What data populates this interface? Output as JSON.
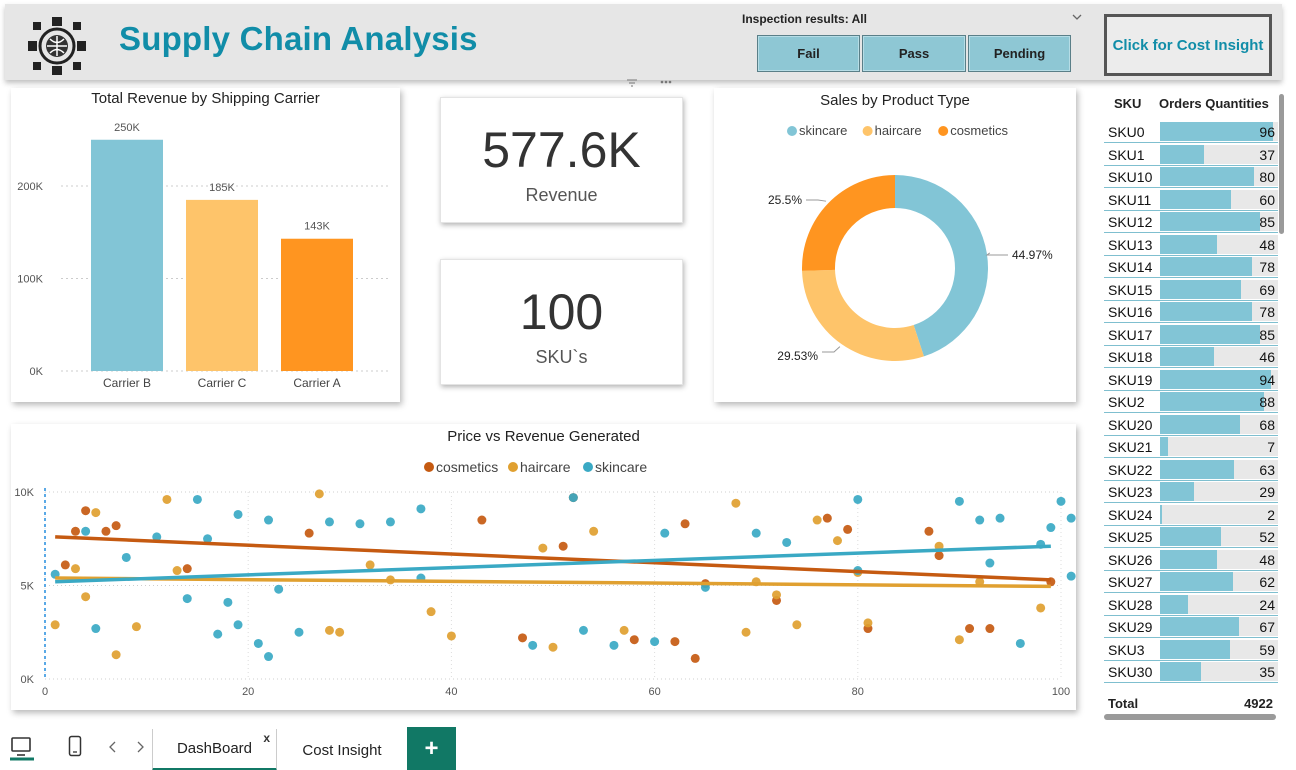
{
  "header": {
    "title": "Supply Chain Analysis",
    "inspection_label": "Inspection results: All",
    "slicer_buttons": [
      "Fail",
      "Pass",
      "Pending"
    ],
    "cost_button": "Click for Cost Insight"
  },
  "revenue_chart": {
    "chart_data": {
      "type": "bar",
      "title": "Total Revenue by Shipping Carrier",
      "categories": [
        "Carrier B",
        "Carrier C",
        "Carrier A"
      ],
      "values": [
        250,
        185,
        143
      ],
      "data_labels": [
        "250K",
        "185K",
        "143K"
      ],
      "colors": [
        "#82c5d6",
        "#fec46a",
        "#ff9520"
      ],
      "yticks": [
        "0K",
        "100K",
        "200K"
      ],
      "ylim": [
        0,
        280
      ]
    }
  },
  "cards": {
    "revenue_value": "577.6K",
    "revenue_label": "Revenue",
    "sku_value": "100",
    "sku_label": "SKU`s"
  },
  "donut_chart": {
    "chart_data": {
      "type": "pie",
      "title": "Sales by Product Type",
      "legend": [
        "skincare",
        "haircare",
        "cosmetics"
      ],
      "values": [
        44.97,
        29.53,
        25.5
      ],
      "labels": [
        "44.97%",
        "29.53%",
        "25.5%"
      ],
      "colors": [
        "#82c5d6",
        "#fec46a",
        "#ff9520"
      ]
    }
  },
  "scatter_chart": {
    "chart_data": {
      "type": "scatter",
      "title": "Price vs Revenue Generated",
      "legend": [
        "cosmetics",
        "haircare",
        "skincare"
      ],
      "colors": {
        "cosmetics": "#c55a11",
        "haircare": "#e0a030",
        "skincare": "#3aa9c4"
      },
      "xticks": [
        "0",
        "20",
        "40",
        "60",
        "80",
        "100"
      ],
      "yticks": [
        "0K",
        "5K",
        "10K"
      ],
      "xlim": [
        0,
        100
      ],
      "ylim": [
        0,
        10
      ],
      "series": [
        {
          "name": "cosmetics",
          "points": [
            [
              2,
              6.1
            ],
            [
              3,
              7.9
            ],
            [
              4,
              9
            ],
            [
              6,
              7.9
            ],
            [
              7,
              8.2
            ],
            [
              14,
              5.9
            ],
            [
              26,
              7.8
            ],
            [
              43,
              8.5
            ],
            [
              47,
              2.2
            ],
            [
              51,
              7.1
            ],
            [
              52,
              9.7
            ],
            [
              58,
              2.1
            ],
            [
              62,
              2
            ],
            [
              63,
              8.3
            ],
            [
              64,
              1.1
            ],
            [
              65,
              5.1
            ],
            [
              72,
              4.2
            ],
            [
              77,
              8.6
            ],
            [
              79,
              8
            ],
            [
              81,
              2.7
            ],
            [
              87,
              7.9
            ],
            [
              88,
              6.6
            ],
            [
              91,
              2.7
            ],
            [
              93,
              2.7
            ],
            [
              99,
              5.2
            ]
          ]
        },
        {
          "name": "haircare",
          "points": [
            [
              1,
              2.9
            ],
            [
              3,
              5.9
            ],
            [
              4,
              4.4
            ],
            [
              5,
              8.9
            ],
            [
              7,
              1.3
            ],
            [
              9,
              2.8
            ],
            [
              12,
              9.6
            ],
            [
              13,
              5.8
            ],
            [
              27,
              9.9
            ],
            [
              28,
              2.6
            ],
            [
              29,
              2.5
            ],
            [
              32,
              6.1
            ],
            [
              34,
              5.3
            ],
            [
              38,
              3.6
            ],
            [
              40,
              2.3
            ],
            [
              49,
              7
            ],
            [
              50,
              1.7
            ],
            [
              54,
              7.9
            ],
            [
              57,
              2.6
            ],
            [
              68,
              9.4
            ],
            [
              69,
              2.5
            ],
            [
              70,
              5.2
            ],
            [
              72,
              4.5
            ],
            [
              74,
              2.9
            ],
            [
              76,
              8.5
            ],
            [
              78,
              7.4
            ],
            [
              80,
              5.7
            ],
            [
              81,
              3
            ],
            [
              88,
              7.1
            ],
            [
              90,
              2.1
            ],
            [
              92,
              5.2
            ],
            [
              98,
              3.8
            ]
          ]
        },
        {
          "name": "skincare",
          "points": [
            [
              1,
              5.6
            ],
            [
              4,
              7.9
            ],
            [
              5,
              2.7
            ],
            [
              8,
              6.5
            ],
            [
              11,
              7.6
            ],
            [
              14,
              4.3
            ],
            [
              15,
              9.6
            ],
            [
              16,
              7.5
            ],
            [
              17,
              2.4
            ],
            [
              18,
              4.1
            ],
            [
              19,
              2.9
            ],
            [
              19,
              8.8
            ],
            [
              21,
              1.9
            ],
            [
              22,
              8.5
            ],
            [
              22,
              1.2
            ],
            [
              23,
              4.8
            ],
            [
              25,
              2.5
            ],
            [
              28,
              8.4
            ],
            [
              31,
              8.3
            ],
            [
              34,
              8.4
            ],
            [
              37,
              9.1
            ],
            [
              37,
              5.4
            ],
            [
              48,
              1.8
            ],
            [
              52,
              9.7
            ],
            [
              53,
              2.6
            ],
            [
              56,
              1.8
            ],
            [
              60,
              2
            ],
            [
              61,
              7.8
            ],
            [
              65,
              4.9
            ],
            [
              70,
              7.8
            ],
            [
              73,
              7.3
            ],
            [
              80,
              9.6
            ],
            [
              80,
              5.8
            ],
            [
              90,
              9.5
            ],
            [
              92,
              8.5
            ],
            [
              93,
              6.2
            ],
            [
              94,
              8.6
            ],
            [
              96,
              1.9
            ],
            [
              98,
              7.2
            ],
            [
              99,
              8.1
            ],
            [
              100,
              9.5
            ],
            [
              101,
              5.5
            ],
            [
              101,
              8.6
            ]
          ]
        }
      ],
      "trend_lines": [
        {
          "name": "cosmetics",
          "from": [
            1,
            7.6
          ],
          "to": [
            99,
            5.3
          ]
        },
        {
          "name": "haircare",
          "from": [
            1,
            5.4
          ],
          "to": [
            99,
            4.95
          ]
        },
        {
          "name": "skincare",
          "from": [
            1,
            5.2
          ],
          "to": [
            99,
            7.1
          ]
        }
      ]
    }
  },
  "sku_table": {
    "headers": [
      "SKU",
      "Orders Quantities"
    ],
    "max": 100,
    "rows": [
      {
        "sku": "SKU0",
        "qty": 96
      },
      {
        "sku": "SKU1",
        "qty": 37
      },
      {
        "sku": "SKU10",
        "qty": 80
      },
      {
        "sku": "SKU11",
        "qty": 60
      },
      {
        "sku": "SKU12",
        "qty": 85
      },
      {
        "sku": "SKU13",
        "qty": 48
      },
      {
        "sku": "SKU14",
        "qty": 78
      },
      {
        "sku": "SKU15",
        "qty": 69
      },
      {
        "sku": "SKU16",
        "qty": 78
      },
      {
        "sku": "SKU17",
        "qty": 85
      },
      {
        "sku": "SKU18",
        "qty": 46
      },
      {
        "sku": "SKU19",
        "qty": 94
      },
      {
        "sku": "SKU2",
        "qty": 88
      },
      {
        "sku": "SKU20",
        "qty": 68
      },
      {
        "sku": "SKU21",
        "qty": 7
      },
      {
        "sku": "SKU22",
        "qty": 63
      },
      {
        "sku": "SKU23",
        "qty": 29
      },
      {
        "sku": "SKU24",
        "qty": 2
      },
      {
        "sku": "SKU25",
        "qty": 52
      },
      {
        "sku": "SKU26",
        "qty": 48
      },
      {
        "sku": "SKU27",
        "qty": 62
      },
      {
        "sku": "SKU28",
        "qty": 24
      },
      {
        "sku": "SKU29",
        "qty": 67
      },
      {
        "sku": "SKU3",
        "qty": 59
      },
      {
        "sku": "SKU30",
        "qty": 35
      }
    ],
    "total_label": "Total",
    "total_value": "4922"
  },
  "tabs": {
    "pages": [
      "DashBoard",
      "Cost Insight"
    ],
    "close_glyph": "x",
    "add_glyph": "+"
  }
}
